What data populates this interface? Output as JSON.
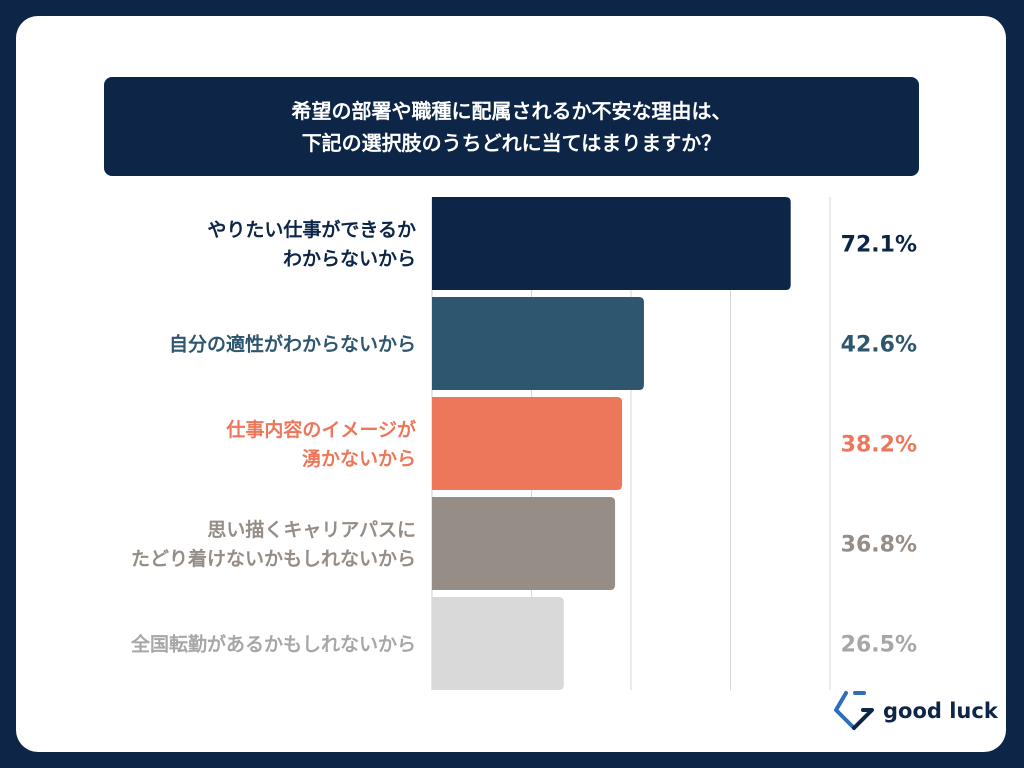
{
  "title": {
    "line1": "希望の部署や職種に配属されるか不安な理由は、",
    "line2": "下記の選択肢のうちどれに当てはまりますか？"
  },
  "chart_data": {
    "type": "bar",
    "orientation": "horizontal",
    "categories": [
      [
        "やりたい仕事ができるか",
        "わからないから"
      ],
      [
        "自分の適性がわからないから"
      ],
      [
        "仕事内容のイメージが",
        "湧かないから"
      ],
      [
        "思い描くキャリアパスに",
        "たどり着けないかもしれないから"
      ],
      [
        "全国転勤があるかもしれないから"
      ]
    ],
    "values": [
      72.1,
      42.6,
      38.2,
      36.8,
      26.5
    ],
    "value_labels": [
      "72.1%",
      "42.6%",
      "38.2%",
      "36.8%",
      "26.5%"
    ],
    "colors": [
      "#0d2547",
      "#2f566f",
      "#ec775a",
      "#958d86",
      "#d9d9d9"
    ],
    "label_colors": [
      "#0d2547",
      "#2f566f",
      "#ec775a",
      "#958d86",
      "#a7a7a7"
    ],
    "xlim": [
      0,
      80
    ],
    "grid": true
  },
  "logo": {
    "text": "good luck",
    "icon": "good-luck-logo-icon"
  }
}
